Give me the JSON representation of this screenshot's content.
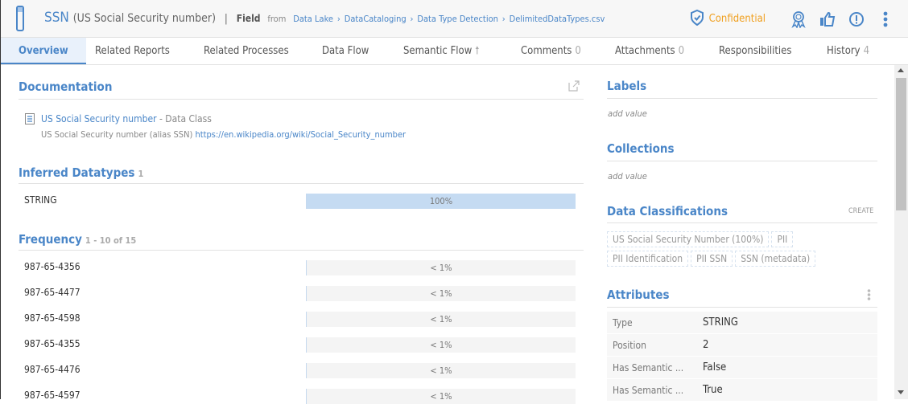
{
  "header": {
    "title": "SSN",
    "subtitle": "(US Social Security number)",
    "separator": "|",
    "kind": "Field",
    "from": "from",
    "breadcrumb": [
      "Data Lake",
      "DataCataloging",
      "Data Type Detection",
      "DelimitedDataTypes.csv"
    ],
    "breadcrumb_sep": "›",
    "classification": "Confidential",
    "colors": {
      "accent": "#4a86c8",
      "confidential": "#f0a020"
    }
  },
  "tabs": [
    {
      "label": "Overview",
      "active": true
    },
    {
      "label": "Related Reports"
    },
    {
      "label": "Related Processes"
    },
    {
      "label": "Data Flow"
    },
    {
      "label": "Semantic Flow",
      "icon": "arrow-up-icon"
    },
    {
      "label": "Comments",
      "count": "0"
    },
    {
      "label": "Attachments",
      "count": "0"
    },
    {
      "label": "Responsibilities"
    },
    {
      "label": "History",
      "count": "4"
    }
  ],
  "documentation": {
    "title": "Documentation",
    "doc_title": "US Social Security number",
    "doc_type": "- Data Class",
    "description": "US Social Security number (alias SSN)",
    "link": "https://en.wikipedia.org/wiki/Social_Security_number"
  },
  "inferred": {
    "title": "Inferred Datatypes",
    "count": "1",
    "rows": [
      {
        "label": "STRING",
        "value": "100%",
        "fraction": 1
      }
    ]
  },
  "frequency": {
    "title": "Frequency",
    "range": "1 - 10 of 15",
    "rows": [
      {
        "label": "987-65-4356",
        "value": "< 1%"
      },
      {
        "label": "987-65-4477",
        "value": "< 1%"
      },
      {
        "label": "987-65-4598",
        "value": "< 1%"
      },
      {
        "label": "987-65-4355",
        "value": "< 1%"
      },
      {
        "label": "987-65-4476",
        "value": "< 1%"
      },
      {
        "label": "987-65-4597",
        "value": "< 1%"
      }
    ]
  },
  "labels": {
    "title": "Labels",
    "placeholder": "add value"
  },
  "collections": {
    "title": "Collections",
    "placeholder": "add value"
  },
  "classifications": {
    "title": "Data Classifications",
    "create": "CREATE",
    "chips": [
      "US Social Security Number (100%)",
      "PII",
      "PII Identification",
      "PII SSN",
      "SSN (metadata)"
    ]
  },
  "attributes": {
    "title": "Attributes",
    "rows": [
      {
        "key": "Type",
        "value": "STRING"
      },
      {
        "key": "Position",
        "value": "2"
      },
      {
        "key": "Has Semantic ...",
        "value": "False"
      },
      {
        "key": "Has Semantic ...",
        "value": "True"
      }
    ]
  }
}
